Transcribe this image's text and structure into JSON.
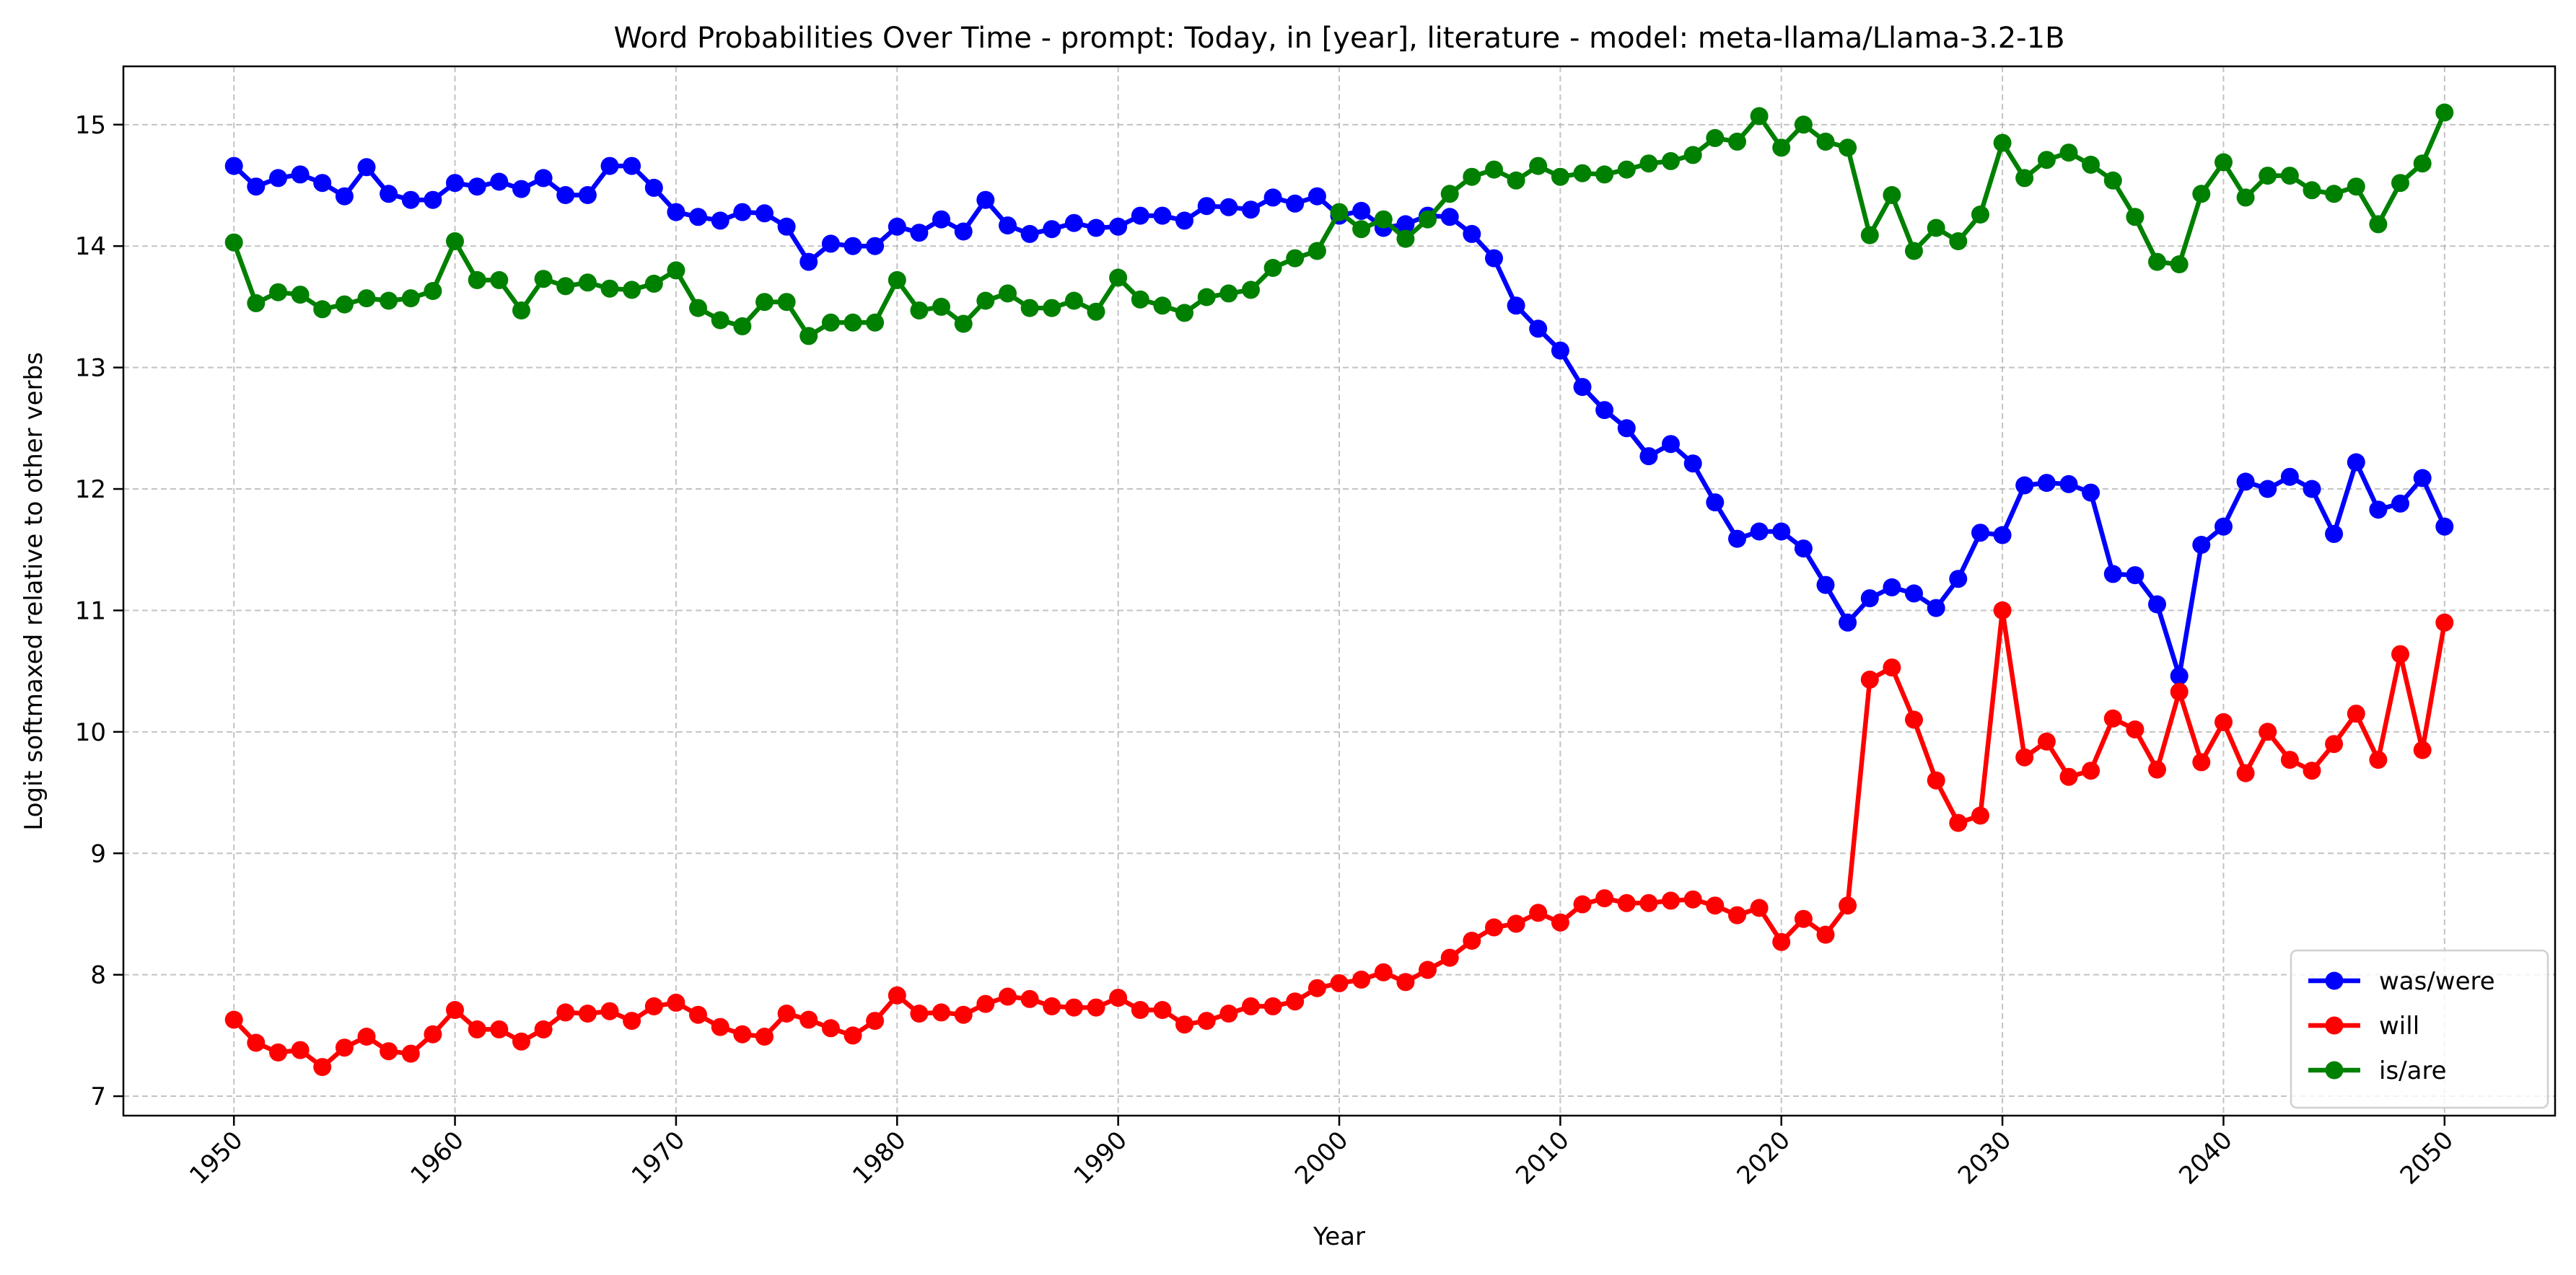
{
  "chart_data": {
    "type": "line",
    "title": "Word Probabilities Over Time - prompt: Today, in [year], literature - model: meta-llama/Llama-3.2-1B",
    "xlabel": "Year",
    "ylabel": "Logit softmaxed relative to other verbs",
    "xlim": [
      1945,
      2055
    ],
    "ylim": [
      6.84,
      15.48
    ],
    "x_ticks": [
      1950,
      1960,
      1970,
      1980,
      1990,
      2000,
      2010,
      2020,
      2030,
      2040,
      2050
    ],
    "y_ticks": [
      7,
      8,
      9,
      10,
      11,
      12,
      13,
      14,
      15
    ],
    "grid": true,
    "legend_position": "bottom-right",
    "x_start": 1950,
    "series": [
      {
        "name": "was/were",
        "color": "#0000ff",
        "values": [
          14.66,
          14.49,
          14.56,
          14.59,
          14.52,
          14.41,
          14.65,
          14.43,
          14.38,
          14.38,
          14.52,
          14.49,
          14.53,
          14.47,
          14.56,
          14.42,
          14.42,
          14.66,
          14.66,
          14.48,
          14.28,
          14.24,
          14.21,
          14.28,
          14.27,
          14.16,
          13.87,
          14.02,
          14.0,
          14.0,
          14.16,
          14.11,
          14.22,
          14.12,
          14.38,
          14.17,
          14.1,
          14.14,
          14.19,
          14.15,
          14.16,
          14.25,
          14.25,
          14.21,
          14.33,
          14.32,
          14.3,
          14.4,
          14.35,
          14.41,
          14.25,
          14.29,
          14.15,
          14.18,
          14.25,
          14.24,
          14.1,
          13.9,
          13.51,
          13.32,
          13.14,
          12.84,
          12.65,
          12.5,
          12.27,
          12.37,
          12.21,
          11.89,
          11.59,
          11.65,
          11.65,
          11.51,
          11.21,
          10.9,
          11.1,
          11.19,
          11.14,
          11.02,
          11.26,
          11.64,
          11.62,
          12.03,
          12.05,
          12.04,
          11.97,
          11.3,
          11.29,
          11.05,
          10.46,
          11.54,
          11.69,
          12.06,
          12.0,
          12.1,
          12.0,
          11.63,
          12.22,
          11.83,
          11.88,
          12.09,
          11.69
        ]
      },
      {
        "name": "will",
        "color": "#ff0000",
        "values": [
          7.63,
          7.44,
          7.36,
          7.38,
          7.24,
          7.4,
          7.49,
          7.37,
          7.35,
          7.51,
          7.71,
          7.55,
          7.55,
          7.45,
          7.55,
          7.69,
          7.68,
          7.7,
          7.62,
          7.74,
          7.77,
          7.67,
          7.57,
          7.51,
          7.49,
          7.68,
          7.63,
          7.56,
          7.5,
          7.62,
          7.83,
          7.68,
          7.69,
          7.67,
          7.76,
          7.82,
          7.8,
          7.74,
          7.73,
          7.73,
          7.81,
          7.71,
          7.71,
          7.59,
          7.62,
          7.68,
          7.74,
          7.74,
          7.78,
          7.89,
          7.93,
          7.96,
          8.02,
          7.94,
          8.04,
          8.14,
          8.28,
          8.39,
          8.42,
          8.51,
          8.43,
          8.58,
          8.63,
          8.59,
          8.59,
          8.61,
          8.62,
          8.57,
          8.49,
          8.55,
          8.27,
          8.46,
          8.33,
          8.57,
          10.43,
          10.53,
          10.1,
          9.6,
          9.25,
          9.31,
          11.0,
          9.79,
          9.92,
          9.63,
          9.68,
          10.11,
          10.02,
          9.69,
          10.33,
          9.75,
          10.08,
          9.66,
          10.0,
          9.77,
          9.68,
          9.9,
          10.15,
          9.77,
          10.64,
          9.85,
          10.9
        ]
      },
      {
        "name": "is/are",
        "color": "#008000",
        "values": [
          14.03,
          13.53,
          13.62,
          13.6,
          13.48,
          13.52,
          13.57,
          13.55,
          13.57,
          13.63,
          14.04,
          13.72,
          13.72,
          13.47,
          13.73,
          13.67,
          13.7,
          13.65,
          13.64,
          13.69,
          13.8,
          13.49,
          13.39,
          13.34,
          13.54,
          13.54,
          13.26,
          13.37,
          13.37,
          13.37,
          13.72,
          13.47,
          13.5,
          13.36,
          13.55,
          13.61,
          13.49,
          13.49,
          13.55,
          13.46,
          13.74,
          13.56,
          13.51,
          13.45,
          13.58,
          13.61,
          13.64,
          13.82,
          13.9,
          13.96,
          14.28,
          14.14,
          14.22,
          14.06,
          14.22,
          14.43,
          14.57,
          14.63,
          14.54,
          14.66,
          14.57,
          14.6,
          14.59,
          14.63,
          14.68,
          14.7,
          14.75,
          14.89,
          14.86,
          15.07,
          14.81,
          15.0,
          14.86,
          14.81,
          14.09,
          14.42,
          13.96,
          14.15,
          14.04,
          14.26,
          14.85,
          14.56,
          14.71,
          14.77,
          14.67,
          14.54,
          14.24,
          13.87,
          13.85,
          14.43,
          14.69,
          14.4,
          14.58,
          14.58,
          14.46,
          14.43,
          14.49,
          14.18,
          14.52,
          14.68,
          15.1
        ]
      }
    ]
  }
}
